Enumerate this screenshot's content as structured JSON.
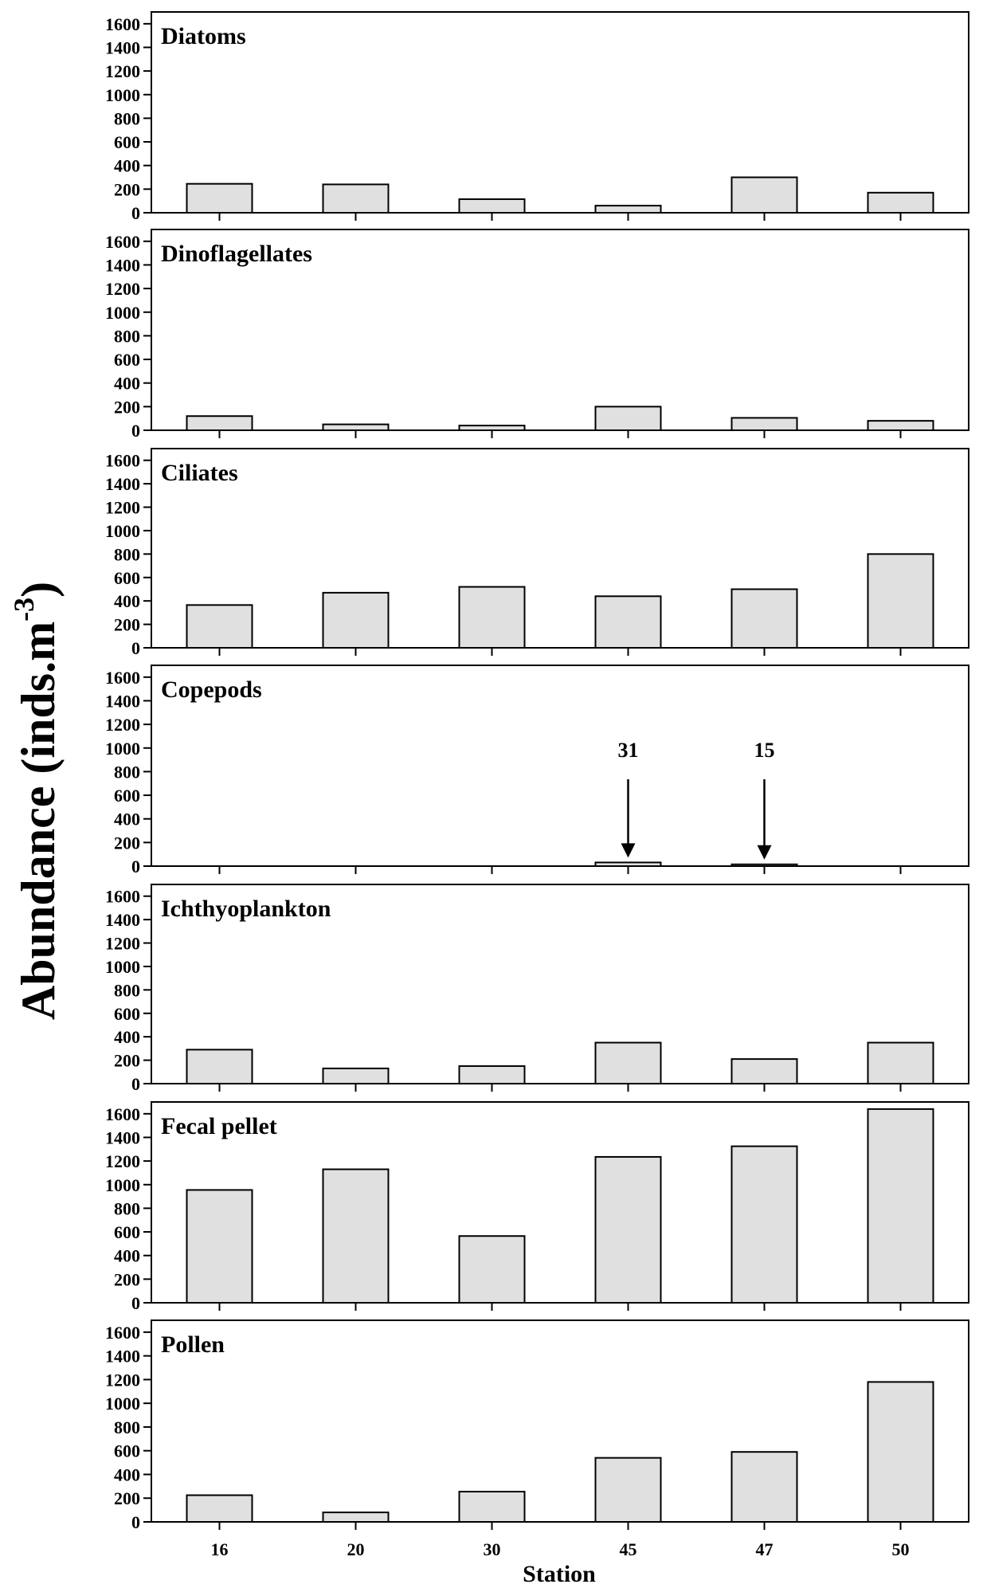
{
  "chart_data": {
    "type": "bar",
    "layout": "stacked-panels",
    "ylabel_main": "Abundance (inds.m",
    "ylabel_exponent": "-3",
    "ylabel_close": ")",
    "xlabel": "Station",
    "categories": [
      "16",
      "20",
      "30",
      "45",
      "47",
      "50"
    ],
    "ylim": [
      0,
      1700
    ],
    "yticks": [
      0,
      200,
      400,
      600,
      800,
      1000,
      1200,
      1400,
      1600
    ],
    "bar_color": "#e0e0e0",
    "grid": false,
    "panels": [
      {
        "title": "Diatoms",
        "values": [
          245,
          240,
          115,
          60,
          300,
          170
        ],
        "annotations": []
      },
      {
        "title": "Dinoflagellates",
        "values": [
          120,
          50,
          40,
          200,
          105,
          80
        ],
        "annotations": []
      },
      {
        "title": "Ciliates",
        "values": [
          365,
          470,
          520,
          440,
          500,
          800
        ],
        "annotations": []
      },
      {
        "title": "Copepods",
        "values": [
          0,
          0,
          0,
          31,
          15,
          0
        ],
        "annotations": [
          {
            "category": "45",
            "label": "31"
          },
          {
            "category": "47",
            "label": "15"
          }
        ]
      },
      {
        "title": "Ichthyoplankton",
        "values": [
          290,
          130,
          150,
          350,
          210,
          350
        ],
        "annotations": []
      },
      {
        "title": "Fecal pellet",
        "values": [
          955,
          1130,
          565,
          1235,
          1325,
          1640
        ],
        "annotations": []
      },
      {
        "title": "Pollen",
        "values": [
          225,
          80,
          255,
          540,
          590,
          1180
        ],
        "annotations": []
      }
    ]
  }
}
